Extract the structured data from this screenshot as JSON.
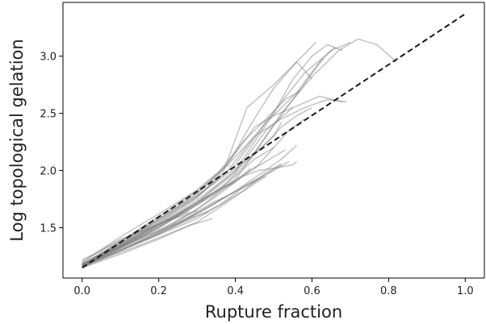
{
  "chart_data": {
    "type": "line",
    "title": "",
    "xlabel": "Rupture fraction",
    "ylabel": "Log topological gelation",
    "xlim": [
      -0.05,
      1.05
    ],
    "ylim": [
      1.06,
      3.47
    ],
    "xticks": [
      0.0,
      0.2,
      0.4,
      0.6,
      0.8,
      1.0
    ],
    "xtick_labels": [
      "0.0",
      "0.2",
      "0.4",
      "0.6",
      "0.8",
      "1.0"
    ],
    "yticks": [
      1.5,
      2.0,
      2.5,
      3.0
    ],
    "ytick_labels": [
      "1.5",
      "2.0",
      "2.5",
      "3.0"
    ],
    "grid": false,
    "legend": "none",
    "colors": {
      "trajectory": "#808080",
      "fit": "#1a1a1a"
    },
    "fit_line": {
      "style": "dashed",
      "x": [
        0.0,
        1.0
      ],
      "y": [
        1.15,
        3.37
      ]
    },
    "series": [
      {
        "x": [
          0.0,
          0.1,
          0.2,
          0.3,
          0.4,
          0.48,
          0.56,
          0.62,
          0.66
        ],
        "y": [
          1.18,
          1.34,
          1.54,
          1.77,
          2.05,
          2.42,
          2.68,
          2.95,
          3.08
        ]
      },
      {
        "x": [
          0.0,
          0.1,
          0.2,
          0.3,
          0.38,
          0.45,
          0.52,
          0.58,
          0.65,
          0.7
        ],
        "y": [
          1.17,
          1.36,
          1.57,
          1.78,
          2.0,
          2.3,
          2.6,
          2.85,
          3.05,
          3.12
        ]
      },
      {
        "x": [
          0.0,
          0.12,
          0.24,
          0.35,
          0.44,
          0.52,
          0.6,
          0.67,
          0.72,
          0.77,
          0.82
        ],
        "y": [
          1.18,
          1.37,
          1.58,
          1.8,
          2.1,
          2.5,
          2.82,
          3.05,
          3.15,
          3.1,
          2.95
        ]
      },
      {
        "x": [
          0.0,
          0.1,
          0.2,
          0.3,
          0.4,
          0.5,
          0.55,
          0.6,
          0.64,
          0.68
        ],
        "y": [
          1.16,
          1.33,
          1.5,
          1.72,
          2.0,
          2.5,
          2.8,
          3.0,
          3.1,
          3.05
        ]
      },
      {
        "x": [
          0.0,
          0.1,
          0.2,
          0.3,
          0.38,
          0.44,
          0.5,
          0.56,
          0.61
        ],
        "y": [
          1.17,
          1.38,
          1.6,
          1.82,
          2.05,
          2.4,
          2.72,
          2.95,
          3.12
        ]
      },
      {
        "x": [
          0.0,
          0.1,
          0.2,
          0.3,
          0.37,
          0.43,
          0.5,
          0.56,
          0.6
        ],
        "y": [
          1.18,
          1.35,
          1.55,
          1.76,
          2.0,
          2.55,
          2.75,
          2.95,
          2.8
        ]
      },
      {
        "x": [
          0.0,
          0.1,
          0.2,
          0.3,
          0.4,
          0.48,
          0.55,
          0.6,
          0.63
        ],
        "y": [
          1.16,
          1.3,
          1.46,
          1.66,
          1.92,
          2.3,
          2.62,
          2.85,
          2.98
        ]
      },
      {
        "x": [
          0.0,
          0.1,
          0.2,
          0.3,
          0.4,
          0.48,
          0.55,
          0.62,
          0.68
        ],
        "y": [
          1.16,
          1.32,
          1.5,
          1.72,
          1.98,
          2.35,
          2.55,
          2.65,
          2.6
        ]
      },
      {
        "x": [
          0.0,
          0.1,
          0.2,
          0.3,
          0.38,
          0.45,
          0.52,
          0.58,
          0.64,
          0.69
        ],
        "y": [
          1.18,
          1.37,
          1.57,
          1.8,
          2.05,
          2.3,
          2.45,
          2.55,
          2.62,
          2.6
        ]
      },
      {
        "x": [
          0.0,
          0.1,
          0.2,
          0.3,
          0.4,
          0.47,
          0.52,
          0.56,
          0.6
        ],
        "y": [
          1.17,
          1.34,
          1.53,
          1.74,
          2.0,
          2.2,
          2.38,
          2.48,
          2.55
        ]
      },
      {
        "x": [
          0.0,
          0.1,
          0.2,
          0.3,
          0.36,
          0.42,
          0.48,
          0.53,
          0.57
        ],
        "y": [
          1.2,
          1.42,
          1.62,
          1.83,
          2.0,
          2.25,
          2.45,
          2.62,
          2.7
        ]
      },
      {
        "x": [
          0.0,
          0.1,
          0.2,
          0.3,
          0.35,
          0.4,
          0.45,
          0.5,
          0.55
        ],
        "y": [
          1.18,
          1.38,
          1.58,
          1.8,
          1.95,
          2.15,
          2.38,
          2.48,
          2.55
        ]
      },
      {
        "x": [
          0.0,
          0.1,
          0.2,
          0.3,
          0.4,
          0.46,
          0.5,
          0.54,
          0.58
        ],
        "y": [
          1.16,
          1.33,
          1.52,
          1.72,
          1.9,
          2.05,
          2.2,
          2.35,
          2.45
        ]
      },
      {
        "x": [
          0.0,
          0.1,
          0.2,
          0.3,
          0.4,
          0.47,
          0.52,
          0.56
        ],
        "y": [
          1.16,
          1.3,
          1.46,
          1.62,
          1.82,
          1.98,
          2.1,
          2.22
        ]
      },
      {
        "x": [
          0.0,
          0.1,
          0.2,
          0.3,
          0.38,
          0.44,
          0.5,
          0.53
        ],
        "y": [
          1.18,
          1.35,
          1.53,
          1.72,
          1.88,
          2.0,
          2.12,
          2.18
        ]
      },
      {
        "x": [
          0.0,
          0.1,
          0.2,
          0.3,
          0.38,
          0.46,
          0.5,
          0.54
        ],
        "y": [
          1.17,
          1.32,
          1.47,
          1.63,
          1.78,
          1.92,
          2.0,
          2.08
        ]
      },
      {
        "x": [
          0.0,
          0.1,
          0.2,
          0.3,
          0.36,
          0.42,
          0.48,
          0.52
        ],
        "y": [
          1.16,
          1.31,
          1.45,
          1.6,
          1.7,
          1.82,
          1.98,
          2.06
        ]
      },
      {
        "x": [
          0.0,
          0.1,
          0.2,
          0.3,
          0.36,
          0.42,
          0.46,
          0.5,
          0.55,
          0.56
        ],
        "y": [
          1.17,
          1.34,
          1.52,
          1.7,
          1.84,
          1.95,
          2.0,
          2.02,
          2.05,
          2.08
        ]
      },
      {
        "x": [
          0.0,
          0.1,
          0.2,
          0.28,
          0.34,
          0.4,
          0.44
        ],
        "y": [
          1.18,
          1.33,
          1.48,
          1.62,
          1.75,
          1.9,
          2.02
        ]
      },
      {
        "x": [
          0.0,
          0.08,
          0.16,
          0.24,
          0.3,
          0.35,
          0.4
        ],
        "y": [
          1.19,
          1.32,
          1.46,
          1.6,
          1.72,
          1.82,
          1.9
        ]
      },
      {
        "x": [
          0.0,
          0.1,
          0.2,
          0.26,
          0.3,
          0.34,
          0.38
        ],
        "y": [
          1.16,
          1.3,
          1.44,
          1.55,
          1.64,
          1.72,
          1.78
        ]
      },
      {
        "x": [
          0.0,
          0.08,
          0.16,
          0.22,
          0.28,
          0.33
        ],
        "y": [
          1.17,
          1.3,
          1.42,
          1.5,
          1.58,
          1.64
        ]
      },
      {
        "x": [
          0.0,
          0.06,
          0.12,
          0.18,
          0.22,
          0.26,
          0.3
        ],
        "y": [
          1.2,
          1.32,
          1.42,
          1.5,
          1.56,
          1.6,
          1.65
        ]
      },
      {
        "x": [
          0.0,
          0.08,
          0.16,
          0.22,
          0.28,
          0.34
        ],
        "y": [
          1.15,
          1.26,
          1.36,
          1.44,
          1.52,
          1.58
        ]
      },
      {
        "x": [
          0.0,
          0.1,
          0.18,
          0.26,
          0.32,
          0.38,
          0.42,
          0.47
        ],
        "y": [
          1.16,
          1.3,
          1.42,
          1.55,
          1.66,
          1.78,
          1.86,
          1.95
        ]
      },
      {
        "x": [
          0.0,
          0.1,
          0.2,
          0.3,
          0.36,
          0.42,
          0.48
        ],
        "y": [
          1.15,
          1.27,
          1.4,
          1.55,
          1.68,
          1.82,
          1.95
        ]
      },
      {
        "x": [
          0.0,
          0.1,
          0.2,
          0.3,
          0.36,
          0.42,
          0.47,
          0.52
        ],
        "y": [
          1.17,
          1.3,
          1.44,
          1.58,
          1.7,
          1.85,
          1.95,
          2.05
        ]
      },
      {
        "x": [
          0.0,
          0.1,
          0.2,
          0.28,
          0.34,
          0.4,
          0.45,
          0.5
        ],
        "y": [
          1.16,
          1.33,
          1.5,
          1.66,
          1.8,
          1.95,
          2.1,
          2.2
        ]
      },
      {
        "x": [
          0.0,
          0.05,
          0.1,
          0.16,
          0.22,
          0.28
        ],
        "y": [
          1.22,
          1.3,
          1.4,
          1.48,
          1.56,
          1.64
        ]
      },
      {
        "x": [
          0.0,
          0.1,
          0.2,
          0.3,
          0.4,
          0.45,
          0.5,
          0.52
        ],
        "y": [
          1.18,
          1.36,
          1.56,
          1.78,
          2.02,
          2.15,
          2.3,
          2.42
        ]
      }
    ]
  }
}
